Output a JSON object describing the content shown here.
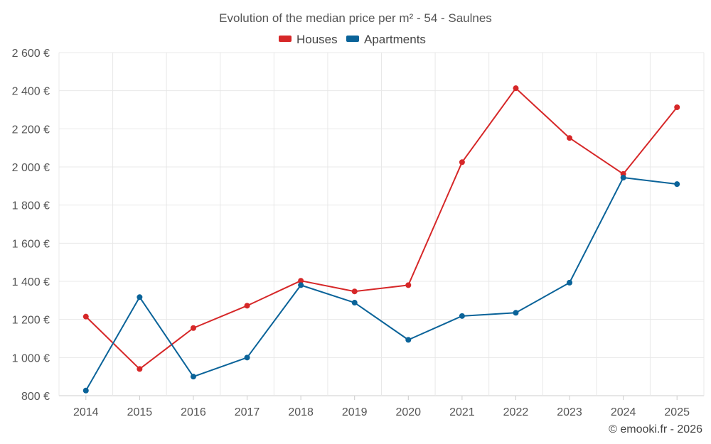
{
  "chart_data": {
    "type": "line",
    "title": "Evolution of the median price per m² - 54 - Saulnes",
    "categories": [
      "2014",
      "2015",
      "2016",
      "2017",
      "2018",
      "2019",
      "2020",
      "2021",
      "2022",
      "2023",
      "2024",
      "2025"
    ],
    "series": [
      {
        "name": "Houses",
        "color": "#d62728",
        "values": [
          1215,
          940,
          1155,
          1272,
          1403,
          1347,
          1380,
          2025,
          2413,
          2152,
          1963,
          2313
        ]
      },
      {
        "name": "Apartments",
        "color": "#0a6399",
        "values": [
          827,
          1317,
          900,
          1000,
          1380,
          1288,
          1093,
          1218,
          1235,
          1393,
          1944,
          1910
        ]
      }
    ],
    "y_ticks": [
      800,
      1000,
      1200,
      1400,
      1600,
      1800,
      2000,
      2200,
      2400,
      2600
    ],
    "y_tick_labels": [
      "800 €",
      "1 000 €",
      "1 200 €",
      "1 400 €",
      "1 600 €",
      "1 800 €",
      "2 000 €",
      "2 200 €",
      "2 400 €",
      "2 600 €"
    ],
    "ylim": [
      800,
      2600
    ],
    "grid": true,
    "legend_position": "top-center"
  },
  "credit": "© emooki.fr - 2026"
}
